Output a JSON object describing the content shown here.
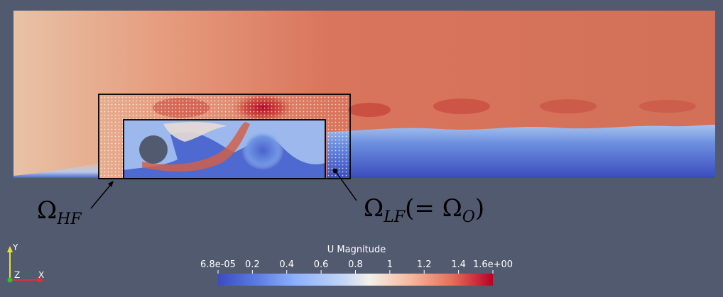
{
  "colors": {
    "background": "#525a70",
    "colormap": [
      "#3b4cc0",
      "#5b7be3",
      "#8db0fe",
      "#c0d4f5",
      "#f2f0ea",
      "#f7b89c",
      "#e57058",
      "#b40426"
    ],
    "obstacle": "#525a70",
    "hf_region_outline": "#000000",
    "lf_region_outline": "#000000",
    "mesh_dots": "#ffffff"
  },
  "annotations": {
    "omega_hf": {
      "symbol": "Ω",
      "subscript": "HF"
    },
    "omega_lf": {
      "symbol": "Ω",
      "subscript": "LF",
      "suffix_open": "(= Ω",
      "suffix_sub": "O",
      "suffix_close": ")"
    }
  },
  "colorbar": {
    "title": "U Magnitude",
    "min": 6.8e-05,
    "max": 1.6,
    "ticks": [
      {
        "label": "6.8e-05",
        "value": 6.8e-05
      },
      {
        "label": "0.2",
        "value": 0.2
      },
      {
        "label": "0.4",
        "value": 0.4
      },
      {
        "label": "0.6",
        "value": 0.6
      },
      {
        "label": "0.8",
        "value": 0.8
      },
      {
        "label": "1",
        "value": 1.0
      },
      {
        "label": "1.2",
        "value": 1.2
      },
      {
        "label": "1.4",
        "value": 1.4
      },
      {
        "label": "1.6e+00",
        "value": 1.6
      }
    ]
  },
  "axes_triad": {
    "x_label": "X",
    "y_label": "Y",
    "z_label": "Z",
    "x_color": "#e03030",
    "y_color": "#e8e030",
    "z_color": "#30c030"
  }
}
